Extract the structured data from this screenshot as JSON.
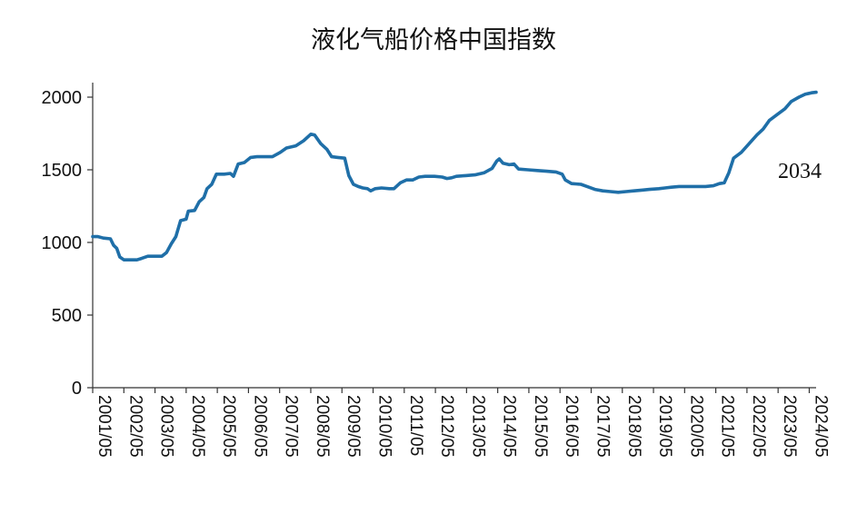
{
  "chart_data": {
    "type": "line",
    "title": "液化气船价格中国指数",
    "xlabel": "",
    "ylabel": "",
    "ylim": [
      0,
      2000
    ],
    "yticks": [
      0,
      500,
      1000,
      1500,
      2000
    ],
    "xticks": [
      "2001/05",
      "2002/05",
      "2003/05",
      "2004/05",
      "2005/05",
      "2006/05",
      "2007/05",
      "2008/05",
      "2009/05",
      "2010/05",
      "2011/05",
      "2012/05",
      "2013/05",
      "2014/05",
      "2015/05",
      "2016/05",
      "2017/05",
      "2018/05",
      "2019/05",
      "2020/05",
      "2021/05",
      "2022/05",
      "2023/05",
      "2024/05"
    ],
    "annotation": "2034",
    "grid": false,
    "color": "#1f6fa8",
    "series": [
      {
        "values": [
          [
            2001.33,
            1040
          ],
          [
            2001.5,
            1040
          ],
          [
            2001.67,
            1030
          ],
          [
            2001.9,
            1025
          ],
          [
            2002.0,
            980
          ],
          [
            2002.1,
            960
          ],
          [
            2002.2,
            900
          ],
          [
            2002.33,
            880
          ],
          [
            2002.5,
            880
          ],
          [
            2002.75,
            880
          ],
          [
            2002.9,
            890
          ],
          [
            2003.1,
            905
          ],
          [
            2003.35,
            905
          ],
          [
            2003.55,
            905
          ],
          [
            2003.7,
            930
          ],
          [
            2003.85,
            990
          ],
          [
            2004.0,
            1040
          ],
          [
            2004.15,
            1150
          ],
          [
            2004.33,
            1160
          ],
          [
            2004.4,
            1215
          ],
          [
            2004.6,
            1220
          ],
          [
            2004.75,
            1280
          ],
          [
            2004.9,
            1310
          ],
          [
            2005.0,
            1370
          ],
          [
            2005.15,
            1400
          ],
          [
            2005.3,
            1470
          ],
          [
            2005.55,
            1470
          ],
          [
            2005.75,
            1475
          ],
          [
            2005.85,
            1455
          ],
          [
            2006.0,
            1540
          ],
          [
            2006.2,
            1550
          ],
          [
            2006.4,
            1585
          ],
          [
            2006.6,
            1590
          ],
          [
            2006.85,
            1590
          ],
          [
            2007.1,
            1590
          ],
          [
            2007.35,
            1620
          ],
          [
            2007.55,
            1650
          ],
          [
            2007.85,
            1665
          ],
          [
            2008.1,
            1700
          ],
          [
            2008.33,
            1745
          ],
          [
            2008.45,
            1740
          ],
          [
            2008.65,
            1680
          ],
          [
            2008.85,
            1640
          ],
          [
            2009.0,
            1590
          ],
          [
            2009.2,
            1585
          ],
          [
            2009.42,
            1580
          ],
          [
            2009.55,
            1460
          ],
          [
            2009.7,
            1400
          ],
          [
            2009.85,
            1385
          ],
          [
            2010.0,
            1375
          ],
          [
            2010.15,
            1370
          ],
          [
            2010.25,
            1355
          ],
          [
            2010.4,
            1370
          ],
          [
            2010.6,
            1375
          ],
          [
            2010.85,
            1370
          ],
          [
            2011.0,
            1370
          ],
          [
            2011.2,
            1410
          ],
          [
            2011.4,
            1430
          ],
          [
            2011.6,
            1430
          ],
          [
            2011.8,
            1450
          ],
          [
            2012.0,
            1455
          ],
          [
            2012.3,
            1455
          ],
          [
            2012.55,
            1450
          ],
          [
            2012.7,
            1440
          ],
          [
            2012.85,
            1445
          ],
          [
            2013.0,
            1455
          ],
          [
            2013.3,
            1460
          ],
          [
            2013.6,
            1465
          ],
          [
            2013.9,
            1480
          ],
          [
            2014.15,
            1510
          ],
          [
            2014.3,
            1560
          ],
          [
            2014.38,
            1575
          ],
          [
            2014.5,
            1545
          ],
          [
            2014.7,
            1535
          ],
          [
            2014.85,
            1540
          ],
          [
            2015.0,
            1505
          ],
          [
            2015.3,
            1500
          ],
          [
            2015.6,
            1495
          ],
          [
            2015.9,
            1490
          ],
          [
            2016.2,
            1485
          ],
          [
            2016.4,
            1470
          ],
          [
            2016.5,
            1430
          ],
          [
            2016.7,
            1405
          ],
          [
            2017.0,
            1400
          ],
          [
            2017.2,
            1385
          ],
          [
            2017.45,
            1365
          ],
          [
            2017.7,
            1355
          ],
          [
            2017.95,
            1350
          ],
          [
            2018.2,
            1345
          ],
          [
            2018.45,
            1350
          ],
          [
            2018.7,
            1355
          ],
          [
            2018.95,
            1360
          ],
          [
            2019.2,
            1365
          ],
          [
            2019.5,
            1370
          ],
          [
            2019.7,
            1375
          ],
          [
            2019.9,
            1380
          ],
          [
            2020.15,
            1385
          ],
          [
            2020.4,
            1385
          ],
          [
            2020.7,
            1385
          ],
          [
            2021.0,
            1385
          ],
          [
            2021.25,
            1390
          ],
          [
            2021.45,
            1405
          ],
          [
            2021.6,
            1410
          ],
          [
            2021.75,
            1480
          ],
          [
            2021.9,
            1580
          ],
          [
            2022.15,
            1620
          ],
          [
            2022.4,
            1680
          ],
          [
            2022.65,
            1740
          ],
          [
            2022.85,
            1780
          ],
          [
            2023.05,
            1840
          ],
          [
            2023.3,
            1880
          ],
          [
            2023.55,
            1920
          ],
          [
            2023.75,
            1970
          ],
          [
            2024.0,
            2000
          ],
          [
            2024.2,
            2020
          ],
          [
            2024.4,
            2030
          ],
          [
            2024.55,
            2034
          ]
        ]
      }
    ]
  }
}
